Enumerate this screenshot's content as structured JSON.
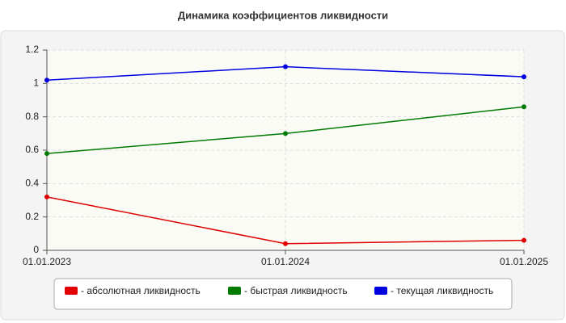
{
  "chart_data": {
    "type": "line",
    "title": "Динамика коэффициентов ликвидности",
    "categories": [
      "01.01.2023",
      "01.01.2024",
      "01.01.2025"
    ],
    "series": [
      {
        "name": "- абсолютная ликвидность",
        "color": "#e00000",
        "values": [
          0.32,
          0.04,
          0.06
        ]
      },
      {
        "name": "- быстрая ликвидность",
        "color": "#007a00",
        "values": [
          0.58,
          0.7,
          0.86
        ]
      },
      {
        "name": "- текущая ликвидность",
        "color": "#0000e0",
        "values": [
          1.02,
          1.1,
          1.04
        ]
      }
    ],
    "ylim": [
      0,
      1.2
    ],
    "yticks": [
      0,
      0.2,
      0.4,
      0.6,
      0.8,
      1,
      1.2
    ],
    "grid": true
  }
}
